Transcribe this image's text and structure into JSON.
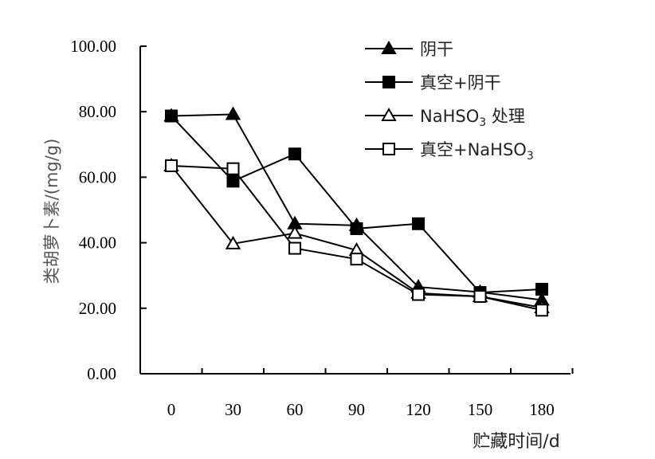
{
  "chart_data": {
    "type": "line",
    "title": "",
    "xlabel": "贮藏时间/d",
    "ylabel": "类胡萝卜素/(mg/g)",
    "x": [
      0,
      30,
      60,
      90,
      120,
      150,
      180
    ],
    "x_tick_labels": [
      "0",
      "30",
      "60",
      "90",
      "120",
      "150",
      "180"
    ],
    "ylim": [
      0,
      100
    ],
    "y_ticks": [
      0,
      20,
      40,
      60,
      80,
      100
    ],
    "y_tick_labels": [
      "0.00",
      "20.00",
      "40.00",
      "60.00",
      "80.00",
      "100.00"
    ],
    "grid": false,
    "legend_position": "top-right",
    "series": [
      {
        "name": "阴干",
        "name_parts": [
          "阴干"
        ],
        "marker": "triangle-filled",
        "values": [
          78.7,
          79.2,
          45.8,
          45.3,
          26.5,
          24.9,
          22.5
        ]
      },
      {
        "name": "真空+阴干",
        "name_parts": [
          "真空+阴干"
        ],
        "marker": "square-filled",
        "values": [
          78.7,
          58.8,
          67.1,
          44.3,
          45.8,
          24.8,
          25.8
        ]
      },
      {
        "name": "NaHSO₃ 处理",
        "name_parts": [
          "NaHSO",
          "3",
          " 处理"
        ],
        "marker": "triangle-open",
        "values": [
          63.5,
          39.7,
          42.9,
          37.7,
          24.6,
          23.6,
          20.2
        ]
      },
      {
        "name": "真空+NaHSO₃",
        "name_parts": [
          "真空+NaHSO",
          "3",
          ""
        ],
        "marker": "square-open",
        "values": [
          63.5,
          62.6,
          38.3,
          35.0,
          24.2,
          23.6,
          19.4
        ]
      }
    ]
  }
}
